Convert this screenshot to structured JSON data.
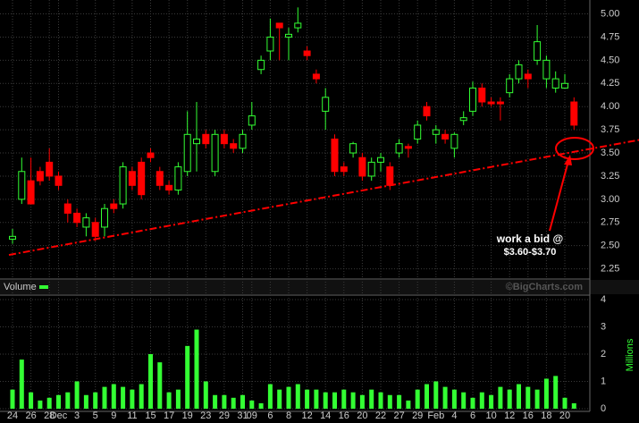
{
  "chart_data": [
    {
      "type": "candlestick",
      "categories": [
        "24",
        null,
        "26",
        null,
        "28",
        "Dec",
        null,
        "3",
        null,
        "5",
        null,
        "9",
        null,
        "11",
        null,
        "15",
        null,
        "17",
        null,
        "19",
        null,
        "23",
        null,
        "29",
        null,
        "31",
        "09",
        null,
        "6",
        null,
        "8",
        null,
        "12",
        null,
        "14",
        null,
        "16",
        null,
        "20",
        null,
        "22",
        null,
        "27",
        null,
        "29",
        null,
        "Feb",
        null,
        "4",
        null,
        "6",
        null,
        "10",
        null,
        "12",
        null,
        "16",
        null,
        "18",
        null,
        "20",
        null
      ],
      "open": [
        2.57,
        3.0,
        3.2,
        3.3,
        3.4,
        3.25,
        2.95,
        2.85,
        2.7,
        2.75,
        2.7,
        2.95,
        2.95,
        3.3,
        3.4,
        3.5,
        3.3,
        3.15,
        3.1,
        3.3,
        3.6,
        3.7,
        3.3,
        3.7,
        3.6,
        3.55,
        3.8,
        4.4,
        4.6,
        4.9,
        4.75,
        4.85,
        4.6,
        4.35,
        3.95,
        3.65,
        3.35,
        3.5,
        3.45,
        3.25,
        3.4,
        3.35,
        3.5,
        3.57,
        3.65,
        4.0,
        3.7,
        3.7,
        3.55,
        3.85,
        3.95,
        4.2,
        4.05,
        4.05,
        4.15,
        4.3,
        4.35,
        4.5,
        4.3,
        4.2,
        4.2,
        4.05
      ],
      "high": [
        2.68,
        3.45,
        3.45,
        3.35,
        3.55,
        3.3,
        3.0,
        2.9,
        2.85,
        2.8,
        2.95,
        3.0,
        3.4,
        3.35,
        3.45,
        3.55,
        3.35,
        3.2,
        3.4,
        3.95,
        4.05,
        3.75,
        3.75,
        3.75,
        3.65,
        3.75,
        4.05,
        4.55,
        4.95,
        4.9,
        4.85,
        5.07,
        4.65,
        4.4,
        4.2,
        3.7,
        3.4,
        3.62,
        3.5,
        3.45,
        3.5,
        3.4,
        3.65,
        3.6,
        3.85,
        4.05,
        3.8,
        3.75,
        3.72,
        3.95,
        4.27,
        4.25,
        4.1,
        4.1,
        4.35,
        4.5,
        4.4,
        4.88,
        4.55,
        4.38,
        4.35,
        4.1
      ],
      "low": [
        2.52,
        2.95,
        2.95,
        3.15,
        3.2,
        3.1,
        2.75,
        2.7,
        2.6,
        2.55,
        2.6,
        2.85,
        2.9,
        3.1,
        3.0,
        3.4,
        3.1,
        3.05,
        3.05,
        3.25,
        3.3,
        3.55,
        3.25,
        3.55,
        3.5,
        3.5,
        3.75,
        4.35,
        4.5,
        4.5,
        4.5,
        4.8,
        4.5,
        4.25,
        3.75,
        3.25,
        3.25,
        3.45,
        3.2,
        3.2,
        3.3,
        3.1,
        3.45,
        3.45,
        3.6,
        3.85,
        3.6,
        3.6,
        3.45,
        3.8,
        3.9,
        4.0,
        4.0,
        3.85,
        4.1,
        4.25,
        4.2,
        4.45,
        4.2,
        4.15,
        4.2,
        3.75
      ],
      "close": [
        2.6,
        3.3,
        2.95,
        3.2,
        3.25,
        3.15,
        2.85,
        2.75,
        2.8,
        2.6,
        2.9,
        2.9,
        3.35,
        3.15,
        3.05,
        3.45,
        3.15,
        3.1,
        3.35,
        3.7,
        3.65,
        3.6,
        3.7,
        3.6,
        3.55,
        3.7,
        3.9,
        4.5,
        4.75,
        4.85,
        4.78,
        4.9,
        4.55,
        4.3,
        4.1,
        3.3,
        3.3,
        3.6,
        3.25,
        3.4,
        3.45,
        3.15,
        3.6,
        3.55,
        3.8,
        3.9,
        3.75,
        3.65,
        3.7,
        3.88,
        4.2,
        4.05,
        4.03,
        4.03,
        4.3,
        4.45,
        4.3,
        4.7,
        4.5,
        4.3,
        4.25,
        3.8
      ],
      "up_color": "#33ff33",
      "down_color": "#ff0000",
      "ylim": [
        2.14,
        5.15
      ],
      "yticks": [
        {
          "value": 5,
          "label": "5.00"
        },
        {
          "value": 4.75,
          "label": "4.75"
        },
        {
          "value": 4.5,
          "label": "4.50"
        },
        {
          "value": 4.25,
          "label": "4.25"
        },
        {
          "value": 4,
          "label": "4.00"
        },
        {
          "value": 3.75,
          "label": "3.75"
        },
        {
          "value": 3.5,
          "label": "3.50"
        },
        {
          "value": 3.25,
          "label": "3.25"
        },
        {
          "value": 3,
          "label": "3.00"
        },
        {
          "value": 2.75,
          "label": "2.75"
        },
        {
          "value": 2.5,
          "label": "2.50"
        },
        {
          "value": 2.25,
          "label": "2.25"
        }
      ],
      "grid": true,
      "trendline": {
        "start": 2.4,
        "end": 3.64,
        "color": "#ff0000"
      },
      "annotation": [
        "work a bid @",
        "$3.60-$3.70"
      ],
      "watermark": "©BigCharts.com"
    },
    {
      "type": "bar",
      "title": "Volume",
      "y_label": "Millions",
      "color": "#33ff33",
      "values": [
        0.7,
        1.8,
        0.6,
        0.3,
        0.4,
        0.5,
        0.6,
        1.0,
        0.5,
        0.6,
        0.8,
        0.9,
        0.8,
        0.7,
        0.9,
        2.0,
        1.7,
        0.6,
        0.7,
        2.3,
        2.9,
        1.0,
        0.5,
        0.5,
        0.4,
        0.5,
        0.3,
        0.2,
        0.9,
        0.7,
        0.8,
        0.9,
        0.7,
        0.7,
        0.6,
        0.6,
        0.7,
        0.6,
        0.5,
        0.7,
        0.6,
        0.5,
        0.5,
        0.3,
        0.7,
        0.9,
        1.0,
        0.8,
        0.7,
        0.6,
        0.4,
        0.6,
        0.5,
        0.8,
        0.7,
        0.9,
        0.8,
        0.7,
        1.1,
        1.2,
        0.4,
        0.2
      ],
      "ylim": [
        0,
        4
      ],
      "yticks": [
        0,
        1,
        2,
        3,
        4
      ],
      "grid": true
    }
  ]
}
